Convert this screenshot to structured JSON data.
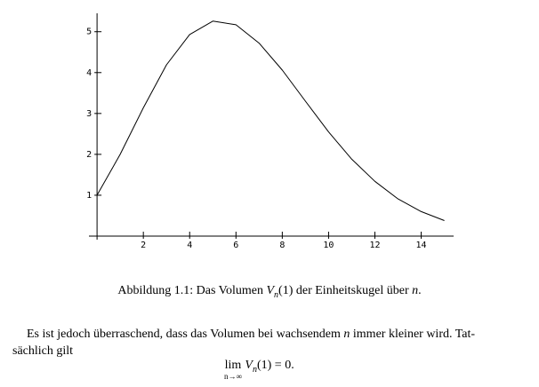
{
  "chart_data": {
    "type": "line",
    "x": [
      0,
      1,
      2,
      3,
      4,
      5,
      6,
      7,
      8,
      9,
      10,
      11,
      12,
      13,
      14,
      15
    ],
    "series": [
      {
        "color": "#000000",
        "values": [
          1,
          2,
          3.14,
          4.19,
          4.93,
          5.26,
          5.17,
          4.72,
          4.06,
          3.3,
          2.55,
          1.88,
          1.34,
          0.91,
          0.6,
          0.38
        ]
      }
    ],
    "xlim": [
      -0.35,
      15.4
    ],
    "ylim": [
      0,
      5.45
    ],
    "xticks": [
      2,
      4,
      6,
      8,
      10,
      12,
      14
    ],
    "yticks": [
      1,
      2,
      3,
      4,
      5
    ]
  },
  "caption": [
    "Abbildung 1.1: Das Volumen ",
    "V",
    "n",
    "(1) der Einheitskugel über ",
    "n",
    "."
  ],
  "paragraph": [
    [
      "Es ist jedoch überraschend, dass das Volumen bei wachsendem ",
      "n",
      " immer kleiner wird. Tat-"
    ],
    [
      "sächlich gilt"
    ]
  ],
  "formula": {
    "operator": "lim",
    "limit": "n→∞",
    "symbol": "V",
    "index": "n",
    "rest": "(1) = 0."
  }
}
